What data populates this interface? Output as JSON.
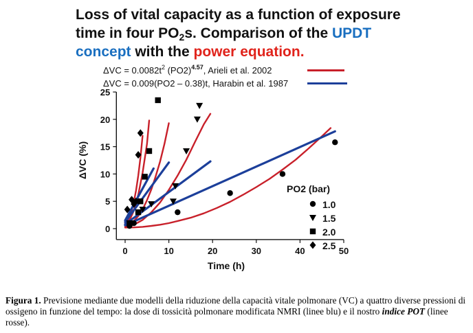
{
  "title": {
    "part1": "Loss of vital capacity as a function of exposure",
    "part2a": "time in four PO",
    "part2sub": "2",
    "part2b": "s. Comparison of the ",
    "part2blue": "UPDT",
    "part3blue": "concept",
    "part3mid": " with the ",
    "part3red": "power equation."
  },
  "legend": {
    "eq1_pre": "ΔVC = 0.0082t",
    "eq1_sup2": "2",
    "eq1_mid": " (PO2)",
    "eq1_sup": "4.57",
    "eq1_post": ", Arieli et al. 2002",
    "eq2": "ΔVC = 0.009(PO2 – 0.38)t, Harabin et al. 1987",
    "eq1_color": "#c8202a",
    "eq2_color": "#1c3f9a"
  },
  "chart_data": {
    "type": "scatter",
    "xlabel": "Time (h)",
    "ylabel": "ΔVC (%)",
    "xlim": [
      -2,
      50
    ],
    "ylim": [
      -2,
      25
    ],
    "xticks": [
      0,
      10,
      20,
      30,
      40,
      50
    ],
    "yticks": [
      0,
      5,
      10,
      15,
      20,
      25
    ],
    "grid": false,
    "legend_title": "PO2 (bar)",
    "legend_position": "lower-right",
    "series": [
      {
        "name": "1.0",
        "marker": "circle",
        "points": [
          [
            1,
            0.5
          ],
          [
            2,
            1
          ],
          [
            12,
            3
          ],
          [
            24,
            6.5
          ],
          [
            36,
            10
          ],
          [
            48,
            15.8
          ]
        ]
      },
      {
        "name": "1.5",
        "marker": "triangle-down",
        "points": [
          [
            1,
            1
          ],
          [
            4,
            3.5
          ],
          [
            6,
            4.5
          ],
          [
            11,
            5
          ],
          [
            11.5,
            7.8
          ],
          [
            14,
            14.2
          ],
          [
            16.5,
            20
          ],
          [
            17,
            22.5
          ]
        ]
      },
      {
        "name": "2.0",
        "marker": "square",
        "points": [
          [
            1,
            1
          ],
          [
            3,
            3
          ],
          [
            3.5,
            5
          ],
          [
            4.5,
            9.5
          ],
          [
            5.5,
            14.2
          ],
          [
            7.5,
            23.5
          ]
        ]
      },
      {
        "name": "2.5",
        "marker": "diamond",
        "points": [
          [
            0.5,
            3.5
          ],
          [
            1.5,
            5.3
          ],
          [
            2,
            4.5
          ],
          [
            2.5,
            5
          ],
          [
            3,
            13.5
          ],
          [
            3.5,
            17.5
          ]
        ]
      }
    ],
    "model_lines": {
      "blue": [
        {
          "po2": 1.0,
          "x": [
            0,
            48
          ],
          "y": [
            0.6,
            17.8
          ]
        },
        {
          "po2": 1.5,
          "x": [
            0,
            19.5
          ],
          "y": [
            0.8,
            12.3
          ]
        },
        {
          "po2": 2.0,
          "x": [
            0,
            10
          ],
          "y": [
            1.2,
            12.1
          ]
        },
        {
          "po2": 2.5,
          "x": [
            0,
            6.5
          ],
          "y": [
            1.5,
            11
          ]
        }
      ],
      "red": [
        {
          "po2": 1.0,
          "x": [
            0,
            2,
            4,
            6,
            8,
            10,
            12,
            15,
            18,
            21,
            24,
            27,
            30,
            33,
            36,
            39,
            42,
            45,
            47
          ],
          "y": [
            0.2,
            0.23,
            0.33,
            0.5,
            0.72,
            1.0,
            1.4,
            2.0,
            2.8,
            3.8,
            4.9,
            6.2,
            7.6,
            9.1,
            10.8,
            12.6,
            14.7,
            16.9,
            18.4
          ]
        },
        {
          "po2": 1.5,
          "x": [
            0,
            2,
            4,
            6,
            8,
            10,
            12,
            14,
            16,
            18,
            19.5
          ],
          "y": [
            0.3,
            0.7,
            1.6,
            3.0,
            4.8,
            7.1,
            9.7,
            12.6,
            15.9,
            19.1,
            21.0
          ]
        },
        {
          "po2": 2.0,
          "x": [
            0,
            1,
            2,
            3,
            4,
            5,
            6,
            7,
            8,
            9,
            10
          ],
          "y": [
            0.5,
            0.8,
            1.4,
            2.3,
            3.5,
            5.2,
            7.2,
            9.6,
            12.3,
            15.5,
            19.3
          ]
        },
        {
          "po2": 2.5,
          "x": [
            0,
            1,
            2,
            3,
            4,
            5,
            5.5
          ],
          "y": [
            0.6,
            1.5,
            3.3,
            6.2,
            10.2,
            15.5,
            19.8
          ]
        },
        {
          "po2": 3.0,
          "x": [
            0,
            0.5,
            1,
            1.5,
            2,
            2.5,
            3,
            3.5,
            4
          ],
          "y": [
            1.0,
            1.4,
            2.1,
            3.3,
            4.9,
            7.0,
            9.7,
            13.0,
            17.0
          ]
        }
      ]
    }
  },
  "caption": {
    "label": "Figura 1.",
    "text1": " Previsione mediante due modelli della riduzione della capacità vitale polmonare (VC) a quattro diverse pressioni di ossigeno in funzione del tempo: la dose di tossicità polmonare modificata NMRI (linee blu) e il nostro ",
    "italic": "indice POT",
    "text2": " (linee rosse)."
  }
}
